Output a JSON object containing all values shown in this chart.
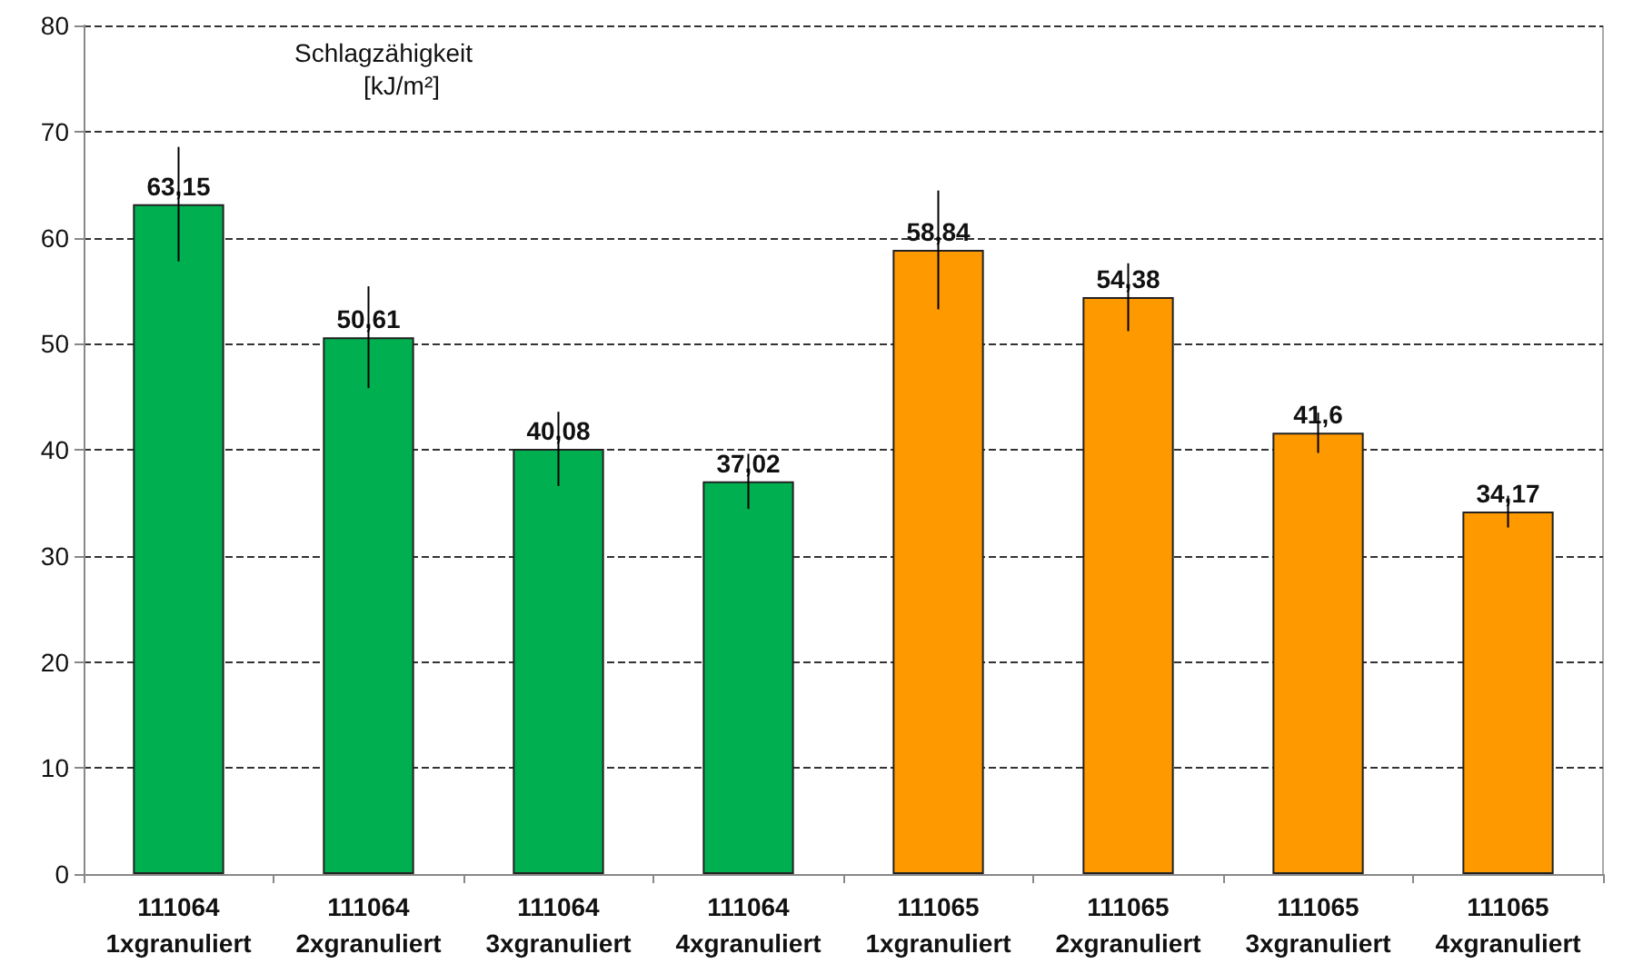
{
  "chart_data": {
    "type": "bar",
    "ylabel": "Schlagzähigkeit\n[kJ/m²]",
    "categories": [
      "111064\n1xgranuliert",
      "111064\n2xgranuliert",
      "111064\n3xgranuliert",
      "111064\n4xgranuliert",
      "111065\n1xgranuliert",
      "111065\n2xgranuliert",
      "111065\n3xgranuliert",
      "111065\n4xgranuliert"
    ],
    "values": [
      63.15,
      50.61,
      40.08,
      37.02,
      58.84,
      54.38,
      41.6,
      34.17
    ],
    "value_labels": [
      "63,15",
      "50,61",
      "40,08",
      "37,02",
      "58,84",
      "54,38",
      "41,6",
      "34,17"
    ],
    "errors": [
      5.4,
      4.8,
      3.5,
      2.6,
      5.6,
      3.2,
      1.9,
      1.5
    ],
    "colors": [
      "#00b050",
      "#00b050",
      "#00b050",
      "#00b050",
      "#ff9900",
      "#ff9900",
      "#ff9900",
      "#ff9900"
    ],
    "ylim": [
      0,
      80
    ],
    "yticks": [
      0,
      10,
      20,
      30,
      40,
      50,
      60,
      70,
      80
    ],
    "grid": "y"
  }
}
